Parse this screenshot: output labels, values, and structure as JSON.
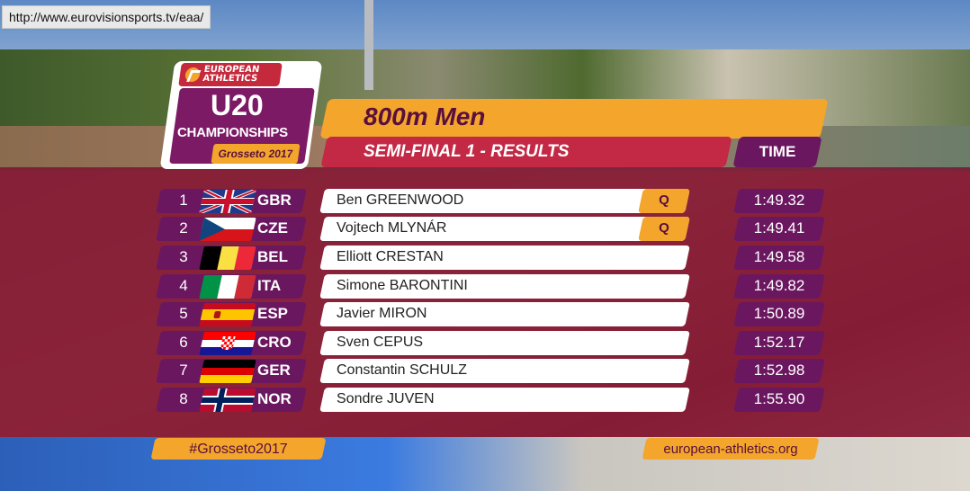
{
  "url_overlay": "http://www.eurovisionsports.tv/eaa/",
  "logo": {
    "brand_line1": "EUROPEAN",
    "brand_line2": "ATHLETICS",
    "u20": "U20",
    "championships": "CHAMPIONSHIPS",
    "location": "Grosseto 2017"
  },
  "event": {
    "title": "800m Men",
    "subtitle": "SEMI-FINAL 1 - RESULTS",
    "time_header": "TIME"
  },
  "results": [
    {
      "rank": "1",
      "nation": "GBR",
      "flag": "gbr-flag",
      "name": "Ben GREENWOOD",
      "qualifier": "Q",
      "time": "1:49.32"
    },
    {
      "rank": "2",
      "nation": "CZE",
      "flag": "cze-flag",
      "name": "Vojtech MLYNÁR",
      "qualifier": "Q",
      "time": "1:49.41"
    },
    {
      "rank": "3",
      "nation": "BEL",
      "flag": "bel-flag",
      "name": "Elliott CRESTAN",
      "qualifier": "",
      "time": "1:49.58"
    },
    {
      "rank": "4",
      "nation": "ITA",
      "flag": "ita-flag",
      "name": "Simone BARONTINI",
      "qualifier": "",
      "time": "1:49.82"
    },
    {
      "rank": "5",
      "nation": "ESP",
      "flag": "esp-flag",
      "name": "Javier MIRON",
      "qualifier": "",
      "time": "1:50.89"
    },
    {
      "rank": "6",
      "nation": "CRO",
      "flag": "cro-flag",
      "name": "Sven CEPUS",
      "qualifier": "",
      "time": "1:52.17"
    },
    {
      "rank": "7",
      "nation": "GER",
      "flag": "ger-flag",
      "name": "Constantin SCHULZ",
      "qualifier": "",
      "time": "1:52.98"
    },
    {
      "rank": "8",
      "nation": "NOR",
      "flag": "nor-flag",
      "name": "Sondre JUVEN",
      "qualifier": "",
      "time": "1:55.90"
    }
  ],
  "footer": {
    "hashtag": "#Grosseto2017",
    "website": "european-athletics.org"
  },
  "colors": {
    "accent_orange": "#f3a52c",
    "accent_purple": "#6b1760",
    "accent_red": "#c32845"
  }
}
